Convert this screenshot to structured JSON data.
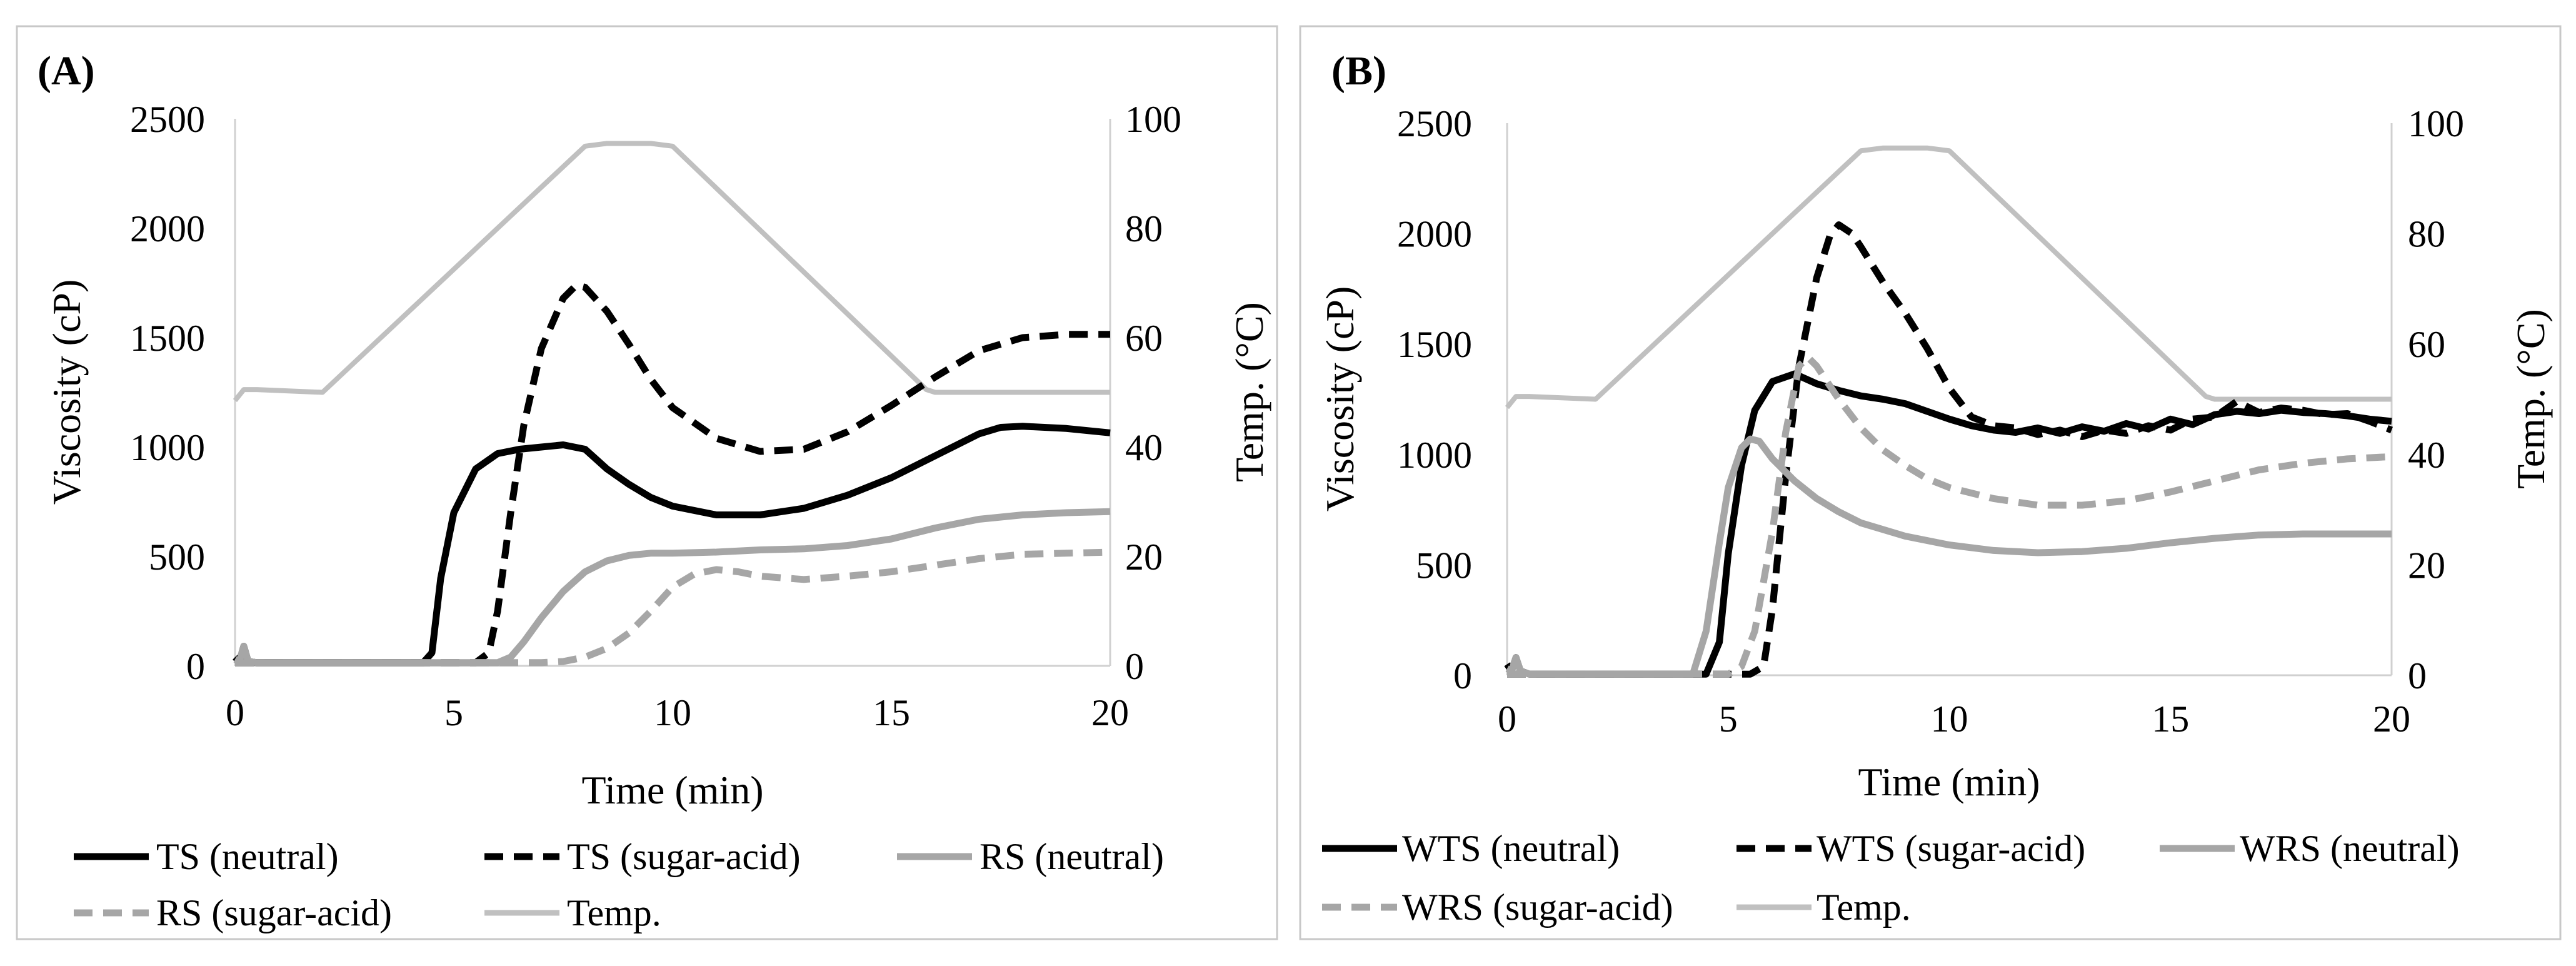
{
  "chart_data": [
    {
      "panel_label": "(A)",
      "type": "line",
      "xlabel": "Time (min)",
      "ylabel": "Viscosity (cP)",
      "y2label": "Temp. (°C)",
      "xlim": [
        0,
        20
      ],
      "ylim": [
        0,
        2500
      ],
      "y2lim": [
        0,
        100
      ],
      "xticks": [
        "0",
        "5",
        "10",
        "15",
        "20"
      ],
      "yticks": [
        "0",
        "500",
        "1000",
        "1500",
        "2000",
        "2500"
      ],
      "y2ticks": [
        "0",
        "20",
        "40",
        "60",
        "80",
        "100"
      ],
      "series": [
        {
          "name": "TS (neutral)",
          "color": "#000000",
          "dash": "solid",
          "axis": "left",
          "x": [
            0,
            0.1,
            0.2,
            0.3,
            0.5,
            4.3,
            4.5,
            4.7,
            5.0,
            5.5,
            6.0,
            6.5,
            7.0,
            7.5,
            8.0,
            8.5,
            9.0,
            9.5,
            10.0,
            11.0,
            12.0,
            13.0,
            14.0,
            15.0,
            16.0,
            17.0,
            17.5,
            18.0,
            19.0,
            20.0
          ],
          "y": [
            40,
            20,
            90,
            20,
            15,
            15,
            60,
            400,
            700,
            900,
            970,
            990,
            1000,
            1010,
            990,
            900,
            830,
            770,
            730,
            690,
            690,
            720,
            780,
            860,
            960,
            1060,
            1090,
            1095,
            1085,
            1065
          ]
        },
        {
          "name": "TS (sugar-acid)",
          "color": "#000000",
          "dash": "dashed",
          "axis": "left",
          "x": [
            0,
            0.5,
            5.5,
            5.8,
            6.0,
            6.3,
            6.6,
            7.0,
            7.5,
            7.8,
            8.0,
            8.5,
            9.0,
            9.5,
            10.0,
            11.0,
            12.0,
            13.0,
            14.0,
            15.0,
            16.0,
            17.0,
            18.0,
            19.0,
            20.0
          ],
          "y": [
            15,
            15,
            15,
            60,
            250,
            700,
            1100,
            1450,
            1680,
            1740,
            1730,
            1620,
            1470,
            1310,
            1180,
            1040,
            980,
            990,
            1070,
            1190,
            1320,
            1440,
            1500,
            1515,
            1515
          ]
        },
        {
          "name": "RS (neutral)",
          "color": "#a6a6a6",
          "dash": "solid",
          "axis": "left",
          "x": [
            0,
            0.1,
            0.2,
            0.3,
            0.5,
            6.0,
            6.3,
            6.6,
            7.0,
            7.5,
            8.0,
            8.5,
            9.0,
            9.5,
            10.0,
            11.0,
            12.0,
            13.0,
            14.0,
            15.0,
            16.0,
            17.0,
            18.0,
            19.0,
            20.0
          ],
          "y": [
            30,
            20,
            90,
            20,
            15,
            15,
            40,
            110,
            220,
            340,
            430,
            480,
            505,
            515,
            515,
            520,
            530,
            535,
            550,
            580,
            630,
            670,
            690,
            700,
            705
          ]
        },
        {
          "name": "RS (sugar-acid)",
          "color": "#a6a6a6",
          "dash": "dashed",
          "axis": "left",
          "x": [
            0,
            0.5,
            7.0,
            7.5,
            8.0,
            8.5,
            9.0,
            9.5,
            10.0,
            10.5,
            11.0,
            11.5,
            12.0,
            13.0,
            14.0,
            15.0,
            16.0,
            17.0,
            18.0,
            19.0,
            20.0
          ],
          "y": [
            15,
            15,
            15,
            20,
            40,
            80,
            150,
            250,
            360,
            420,
            440,
            430,
            410,
            395,
            410,
            430,
            460,
            490,
            510,
            515,
            520
          ]
        },
        {
          "name": "Temp.",
          "color": "#c0c0c0",
          "dash": "solid",
          "axis": "right",
          "x": [
            0,
            0.2,
            0.5,
            2.0,
            8.0,
            8.5,
            9.5,
            10.0,
            15.8,
            16.0,
            20.0
          ],
          "y": [
            48.5,
            50.5,
            50.5,
            50,
            95,
            95.5,
            95.5,
            95,
            50.5,
            50,
            50
          ]
        }
      ],
      "legend": [
        "TS (neutral)",
        "TS (sugar-acid)",
        "RS (neutral)",
        "RS (sugar-acid)",
        "Temp."
      ]
    },
    {
      "panel_label": "(B)",
      "type": "line",
      "xlabel": "Time (min)",
      "ylabel": "Viscosity (cP)",
      "y2label": "Temp. (°C)",
      "xlim": [
        0,
        20
      ],
      "ylim": [
        0,
        2500
      ],
      "y2lim": [
        0,
        100
      ],
      "xticks": [
        "0",
        "5",
        "10",
        "15",
        "20"
      ],
      "yticks": [
        "0",
        "500",
        "1000",
        "1500",
        "2000",
        "2500"
      ],
      "y2ticks": [
        "0",
        "20",
        "40",
        "60",
        "80",
        "100"
      ],
      "series": [
        {
          "name": "WTS (neutral)",
          "color": "#000000",
          "dash": "solid",
          "axis": "left",
          "x": [
            0,
            0.1,
            0.2,
            0.3,
            0.5,
            4.5,
            4.8,
            5.0,
            5.3,
            5.6,
            6.0,
            6.5,
            7.0,
            7.5,
            8.0,
            8.5,
            9.0,
            9.5,
            10.0,
            10.5,
            11.0,
            11.5,
            12.0,
            12.5,
            13.0,
            13.5,
            14.0,
            14.5,
            15.0,
            15.5,
            16.0,
            16.5,
            17.0,
            17.5,
            18.0,
            18.5,
            19.0,
            19.5,
            20.0
          ],
          "y": [
            50,
            20,
            80,
            20,
            5,
            5,
            150,
            550,
            950,
            1200,
            1330,
            1365,
            1320,
            1290,
            1265,
            1250,
            1230,
            1195,
            1160,
            1130,
            1110,
            1100,
            1120,
            1095,
            1125,
            1105,
            1140,
            1115,
            1160,
            1135,
            1180,
            1195,
            1185,
            1200,
            1190,
            1185,
            1175,
            1160,
            1150
          ]
        },
        {
          "name": "WTS (sugar-acid)",
          "color": "#000000",
          "dash": "dashed",
          "axis": "left",
          "x": [
            0,
            0.5,
            5.5,
            5.8,
            6.0,
            6.3,
            6.6,
            7.0,
            7.3,
            7.5,
            7.8,
            8.0,
            8.5,
            9.0,
            9.5,
            10.0,
            10.5,
            11.0,
            11.5,
            12.0,
            12.5,
            13.0,
            13.5,
            14.0,
            14.5,
            15.0,
            15.5,
            16.0,
            16.5,
            17.0,
            17.5,
            18.0,
            18.5,
            19.0,
            19.5,
            20.0
          ],
          "y": [
            5,
            5,
            5,
            40,
            300,
            900,
            1400,
            1800,
            1990,
            2040,
            2000,
            1940,
            1780,
            1640,
            1480,
            1300,
            1170,
            1130,
            1120,
            1090,
            1110,
            1080,
            1110,
            1095,
            1130,
            1110,
            1160,
            1170,
            1240,
            1190,
            1210,
            1200,
            1180,
            1185,
            1150,
            1110
          ]
        },
        {
          "name": "WRS (neutral)",
          "color": "#a6a6a6",
          "dash": "solid",
          "axis": "left",
          "x": [
            0,
            0.1,
            0.2,
            0.3,
            0.5,
            4.2,
            4.5,
            4.8,
            5.0,
            5.3,
            5.5,
            5.7,
            6.0,
            6.5,
            7.0,
            7.5,
            8.0,
            9.0,
            10.0,
            11.0,
            12.0,
            13.0,
            14.0,
            15.0,
            16.0,
            17.0,
            18.0,
            19.0,
            20.0
          ],
          "y": [
            30,
            20,
            80,
            20,
            5,
            5,
            200,
            600,
            850,
            1030,
            1070,
            1060,
            980,
            880,
            800,
            740,
            690,
            630,
            590,
            565,
            555,
            560,
            575,
            600,
            620,
            635,
            640,
            640,
            640
          ]
        },
        {
          "name": "WRS (sugar-acid)",
          "color": "#a6a6a6",
          "dash": "dashed",
          "axis": "left",
          "x": [
            0,
            0.5,
            5.0,
            5.3,
            5.6,
            6.0,
            6.3,
            6.6,
            6.8,
            7.0,
            7.5,
            8.0,
            8.5,
            9.0,
            9.5,
            10.0,
            11.0,
            12.0,
            13.0,
            14.0,
            15.0,
            16.0,
            17.0,
            18.0,
            19.0,
            20.0
          ],
          "y": [
            5,
            5,
            5,
            40,
            200,
            650,
            1100,
            1400,
            1440,
            1400,
            1250,
            1120,
            1020,
            950,
            890,
            850,
            800,
            770,
            770,
            790,
            830,
            880,
            930,
            960,
            980,
            990
          ]
        },
        {
          "name": "Temp.",
          "color": "#c0c0c0",
          "dash": "solid",
          "axis": "right",
          "x": [
            0,
            0.2,
            0.5,
            2.0,
            8.0,
            8.5,
            9.5,
            10.0,
            15.8,
            16.0,
            20.0
          ],
          "y": [
            48.5,
            50.5,
            50.5,
            50,
            95,
            95.5,
            95.5,
            95,
            50.5,
            50,
            50
          ]
        }
      ],
      "legend": [
        "WTS (neutral)",
        "WTS (sugar-acid)",
        "WRS (neutral)",
        "WRS (sugar-acid)",
        "Temp."
      ]
    }
  ]
}
